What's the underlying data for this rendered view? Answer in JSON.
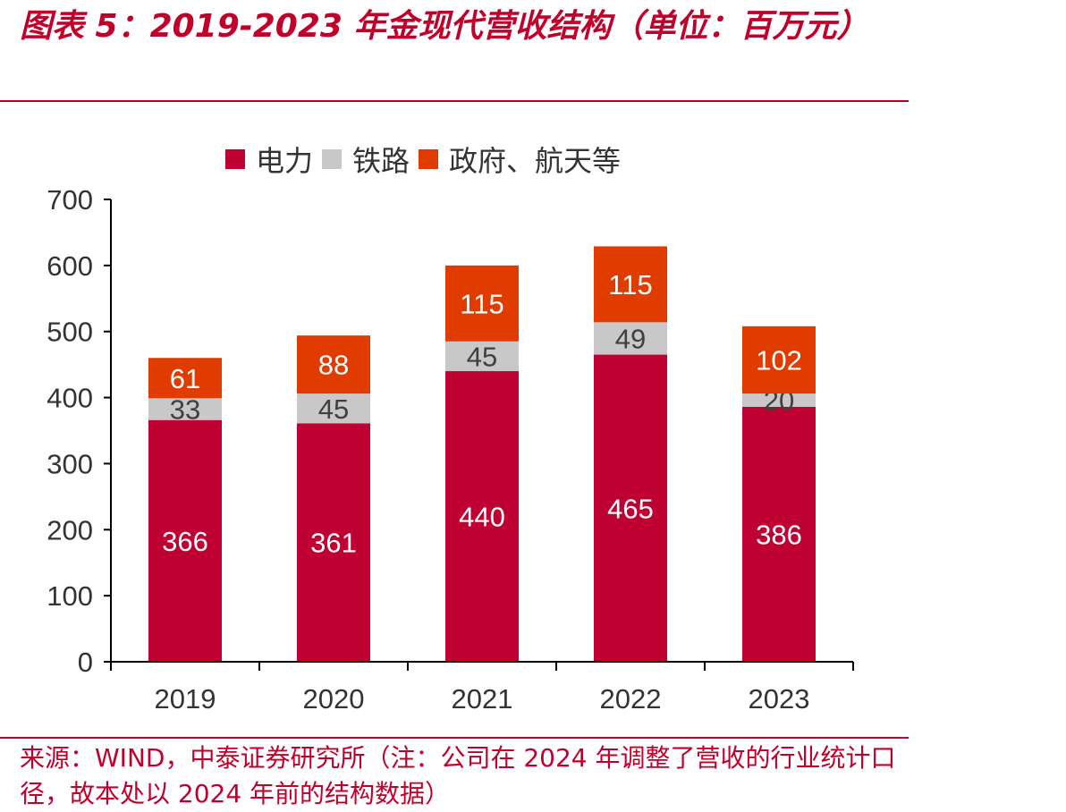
{
  "title": "图表 5：2019-2023 年金现代营收结构（单位：百万元）",
  "source": "来源：WIND，中泰证券研究所（注：公司在 2024 年调整了营收的行业统计口径，故本处以 2024 年前的结构数据）",
  "chart_data": {
    "type": "bar",
    "stacked": true,
    "categories": [
      "2019",
      "2020",
      "2021",
      "2022",
      "2023"
    ],
    "series": [
      {
        "name": "电力",
        "color": "#be0032",
        "label_color": "#ffffff",
        "values": [
          366,
          361,
          440,
          465,
          386
        ]
      },
      {
        "name": "铁路",
        "color": "#c8c8c8",
        "label_color": "#404040",
        "values": [
          33,
          45,
          45,
          49,
          20
        ]
      },
      {
        "name": "政府、航天等",
        "color": "#e03c00",
        "label_color": "#ffffff",
        "values": [
          61,
          88,
          115,
          115,
          102
        ]
      }
    ],
    "ylim": [
      0,
      700
    ],
    "yticks": [
      0,
      100,
      200,
      300,
      400,
      500,
      600,
      700
    ],
    "grid": false,
    "legend_position": "top-center",
    "xlabel": "",
    "ylabel": ""
  }
}
